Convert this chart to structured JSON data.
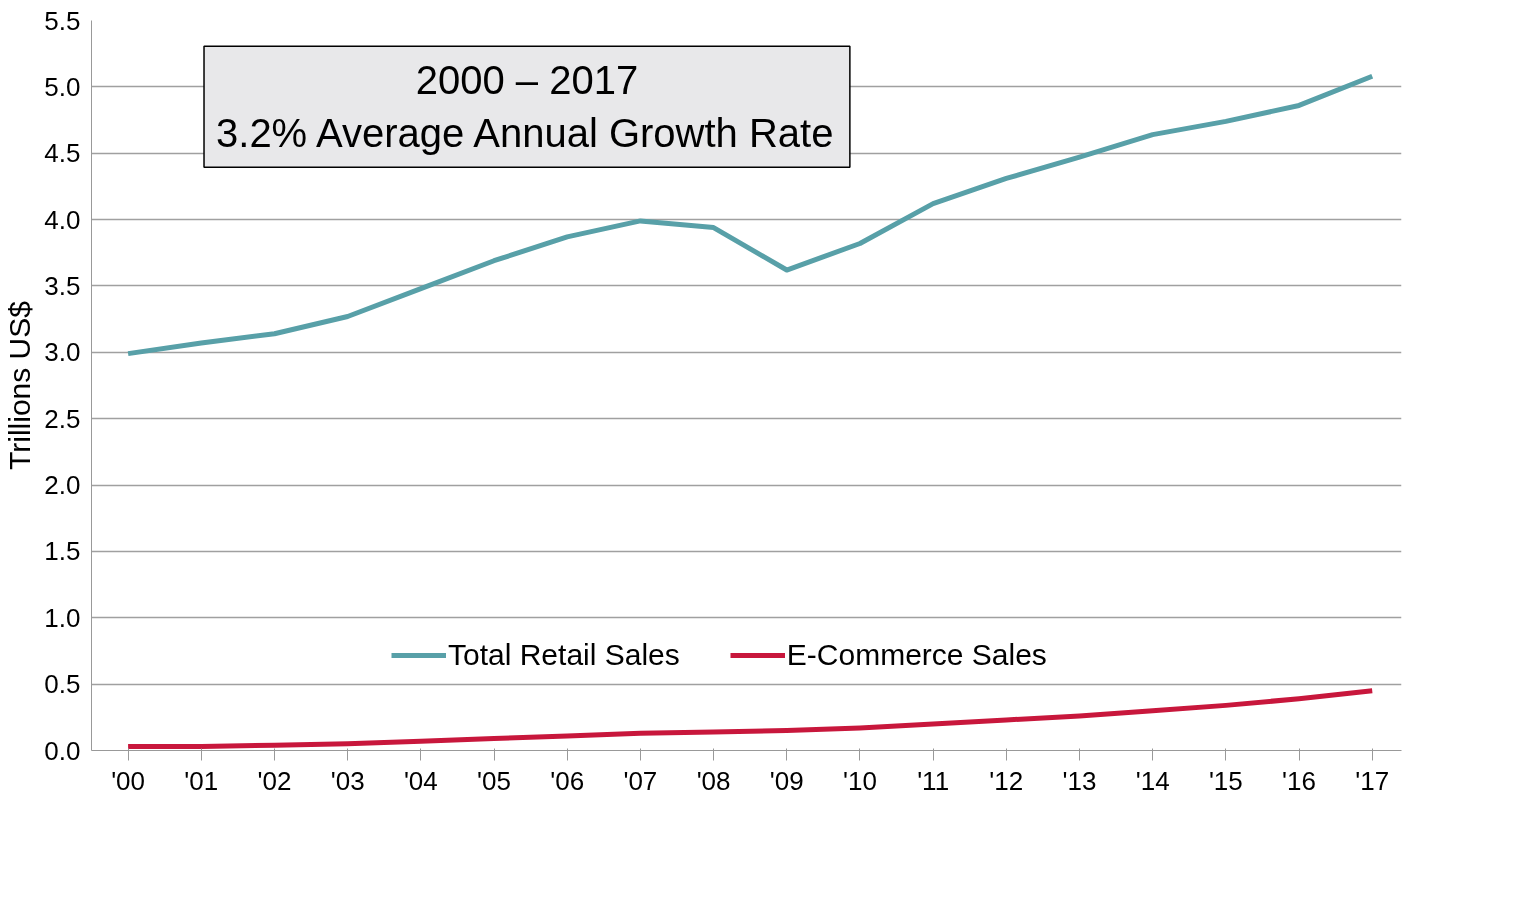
{
  "chart_data": {
    "type": "line",
    "ylabel": "Trillions US$",
    "annotations": [
      "2000 – 2017\n3.2% Average Annual Growth Rate"
    ],
    "categories": [
      "'00",
      "'01",
      "'02",
      "'03",
      "'04",
      "'05",
      "'06",
      "'07",
      "'08",
      "'09",
      "'10",
      "'11",
      "'12",
      "'13",
      "'14",
      "'15",
      "'16",
      "'17"
    ],
    "series": [
      {
        "name": "Total Retail Sales",
        "color": "#58a0a8",
        "values": [
          2.99,
          3.07,
          3.14,
          3.27,
          3.48,
          3.69,
          3.87,
          3.99,
          3.94,
          3.62,
          3.82,
          4.12,
          4.31,
          4.47,
          4.64,
          4.74,
          4.86,
          5.08
        ]
      },
      {
        "name": "E-Commerce Sales",
        "color": "#c8173c",
        "values": [
          0.03,
          0.03,
          0.04,
          0.05,
          0.07,
          0.09,
          0.11,
          0.13,
          0.14,
          0.15,
          0.17,
          0.2,
          0.23,
          0.26,
          0.3,
          0.34,
          0.39,
          0.45
        ]
      }
    ],
    "ylim": [
      0,
      5.5
    ],
    "yticks": [
      {
        "value": 0,
        "label": "0.0"
      },
      {
        "value": 0.5,
        "label": "0.5"
      },
      {
        "value": 1,
        "label": "1.0"
      },
      {
        "value": 1.5,
        "label": "1.5"
      },
      {
        "value": 2,
        "label": "2.0"
      },
      {
        "value": 2.5,
        "label": "2.5"
      },
      {
        "value": 3,
        "label": "3.0"
      },
      {
        "value": 3.5,
        "label": "3.5"
      },
      {
        "value": 4,
        "label": "4.0"
      },
      {
        "value": 4.5,
        "label": "4.5"
      },
      {
        "value": 5,
        "label": "5.0"
      },
      {
        "value": 5.5,
        "label": "5.5"
      }
    ],
    "grid": "y",
    "legend": "bottom",
    "marker": "none",
    "line_style": "solid"
  }
}
